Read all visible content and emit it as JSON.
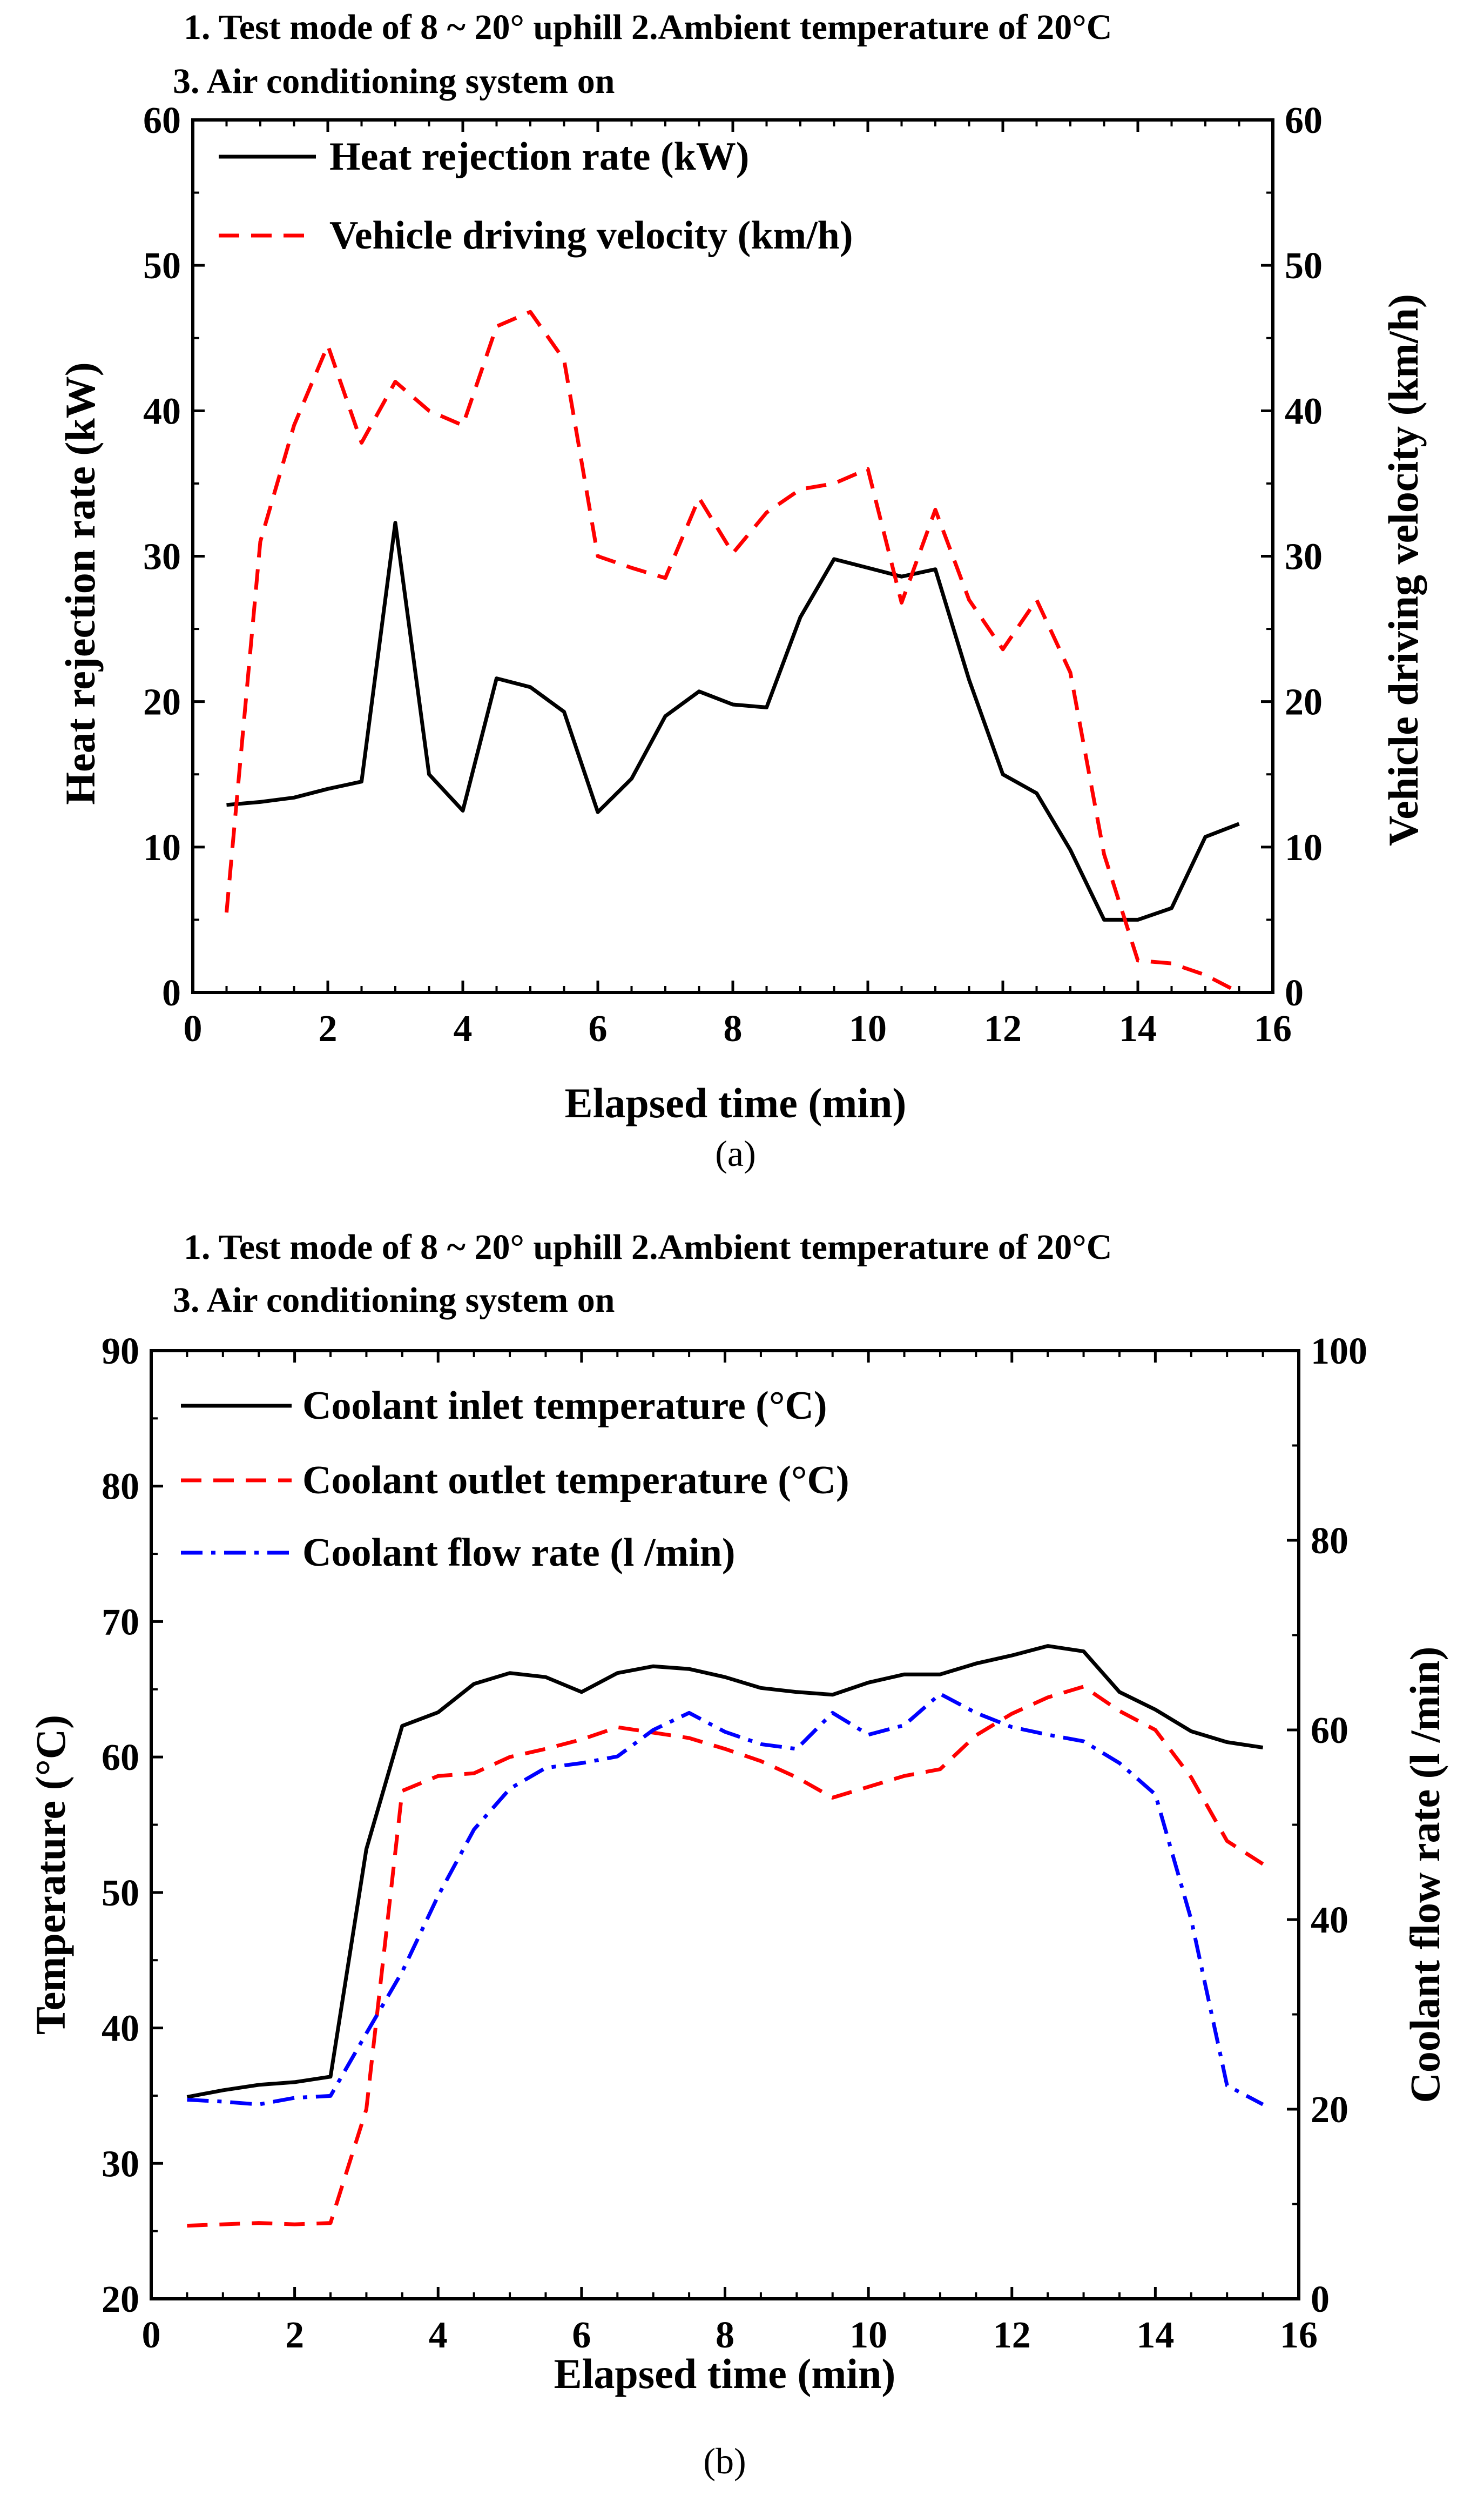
{
  "chart_data": [
    {
      "type": "line",
      "panel": "(a)",
      "title_line1": "1. Test mode of 8 ~ 20° uphill 2.Ambient temperature of 20°C",
      "title_line2": "3. Air conditioning system on",
      "xlabel": "Elapsed time (min)",
      "ylabel": "Heat rejection rate (kW)",
      "y2label": "Vehicle driving velocity (km/h)",
      "xlim": [
        0,
        16
      ],
      "ylim": [
        0,
        60
      ],
      "y2lim": [
        0,
        60
      ],
      "xticks": [
        "0",
        "2",
        "4",
        "6",
        "8",
        "10",
        "12",
        "14",
        "16"
      ],
      "yticks": [
        "0",
        "10",
        "20",
        "30",
        "40",
        "50",
        "60"
      ],
      "y2ticks": [
        "0",
        "10",
        "20",
        "30",
        "40",
        "50",
        "60"
      ],
      "series": [
        {
          "name": "Heat rejection rate (kW)",
          "axis": "left",
          "color": "#000000",
          "dash": "solid",
          "x": [
            0.5,
            1.0,
            1.5,
            2.0,
            2.5,
            3.0,
            3.5,
            4.0,
            4.5,
            5.0,
            5.5,
            6.0,
            6.5,
            7.0,
            7.5,
            8.0,
            8.5,
            9.0,
            9.5,
            10.0,
            10.5,
            11.0,
            11.5,
            12.0,
            12.5,
            13.0,
            13.5,
            14.0,
            14.5,
            15.0,
            15.5
          ],
          "values": [
            12.9,
            13.1,
            13.4,
            14.0,
            14.5,
            32.3,
            15.0,
            12.5,
            21.6,
            21.0,
            19.3,
            12.4,
            14.7,
            19.0,
            20.7,
            19.8,
            19.6,
            25.8,
            29.8,
            29.2,
            28.6,
            29.1,
            21.5,
            15.0,
            13.7,
            9.8,
            5.0,
            5.0,
            5.8,
            10.7,
            11.6
          ]
        },
        {
          "name": "Vehicle driving velocity (km/h)",
          "axis": "right",
          "color": "#ff0000",
          "dash": "dashed",
          "x": [
            0.5,
            1.0,
            1.5,
            2.0,
            2.5,
            3.0,
            3.5,
            4.0,
            4.5,
            5.0,
            5.5,
            6.0,
            6.5,
            7.0,
            7.5,
            8.0,
            8.5,
            9.0,
            9.5,
            10.0,
            10.5,
            11.0,
            11.5,
            12.0,
            12.5,
            13.0,
            13.5,
            14.0,
            14.5,
            15.0,
            15.5
          ],
          "values": [
            5.5,
            31.0,
            39.0,
            44.5,
            37.8,
            42.0,
            40.0,
            39.0,
            45.8,
            46.8,
            43.5,
            30.0,
            29.2,
            28.5,
            34.0,
            30.2,
            33.0,
            34.6,
            35.0,
            36.0,
            26.8,
            33.2,
            27.0,
            23.6,
            27.0,
            22.0,
            9.5,
            2.2,
            2.0,
            1.2,
            0.0
          ]
        }
      ]
    },
    {
      "type": "line",
      "panel": "(b)",
      "title_line1": "1. Test mode of 8 ~ 20° uphill 2.Ambient temperature of 20°C",
      "title_line2": "3. Air conditioning system on",
      "xlabel": "Elapsed time (min)",
      "ylabel": "Temperature (°C)",
      "y2label": "Coolant flow rate (l /min)",
      "xlim": [
        0,
        16
      ],
      "ylim": [
        20,
        90
      ],
      "y2lim": [
        0,
        100
      ],
      "xticks": [
        "0",
        "2",
        "4",
        "6",
        "8",
        "10",
        "12",
        "14",
        "16"
      ],
      "yticks": [
        "20",
        "30",
        "40",
        "50",
        "60",
        "70",
        "80",
        "90"
      ],
      "y2ticks": [
        "0",
        "20",
        "40",
        "60",
        "80",
        "100"
      ],
      "series": [
        {
          "name": "Coolant inlet temperature (°C)",
          "axis": "left",
          "color": "#000000",
          "dash": "solid",
          "x": [
            0.5,
            1.0,
            1.5,
            2.0,
            2.5,
            3.0,
            3.5,
            4.0,
            4.5,
            5.0,
            5.5,
            6.0,
            6.5,
            7.0,
            7.5,
            8.0,
            8.5,
            9.0,
            9.5,
            10.0,
            10.5,
            11.0,
            11.5,
            12.0,
            12.5,
            13.0,
            13.5,
            14.0,
            14.5,
            15.0,
            15.5
          ],
          "values": [
            34.9,
            35.4,
            35.8,
            36.0,
            36.4,
            53.2,
            62.3,
            63.3,
            65.4,
            66.2,
            65.9,
            64.8,
            66.2,
            66.7,
            66.5,
            65.9,
            65.1,
            64.8,
            64.6,
            65.5,
            66.1,
            66.1,
            66.9,
            67.5,
            68.2,
            67.8,
            64.8,
            63.5,
            61.9,
            61.1,
            60.7
          ]
        },
        {
          "name": "Coolant outlet temperature (°C)",
          "axis": "left",
          "color": "#ff0000",
          "dash": "dashed",
          "x": [
            0.5,
            1.0,
            1.5,
            2.0,
            2.5,
            3.0,
            3.5,
            4.0,
            4.5,
            5.0,
            5.5,
            6.0,
            6.5,
            7.0,
            7.5,
            8.0,
            8.5,
            9.0,
            9.5,
            10.0,
            10.5,
            11.0,
            11.5,
            12.0,
            12.5,
            13.0,
            13.5,
            14.0,
            14.5,
            15.0,
            15.5
          ],
          "values": [
            25.4,
            25.5,
            25.6,
            25.5,
            25.6,
            34.0,
            57.5,
            58.6,
            58.8,
            60.0,
            60.6,
            61.3,
            62.2,
            61.8,
            61.4,
            60.6,
            59.7,
            58.5,
            57.0,
            57.8,
            58.6,
            59.1,
            61.6,
            63.2,
            64.4,
            65.2,
            63.4,
            62.0,
            58.5,
            53.8,
            52.1
          ]
        },
        {
          "name": "Coolant flow rate (l /min)",
          "axis": "right",
          "color": "#0000ff",
          "dash": "dashdot",
          "x": [
            0.5,
            1.0,
            1.5,
            2.0,
            2.5,
            3.0,
            3.5,
            4.0,
            4.5,
            5.0,
            5.5,
            6.0,
            6.5,
            7.0,
            7.5,
            8.0,
            8.5,
            9.0,
            9.5,
            10.0,
            10.5,
            11.0,
            11.5,
            12.0,
            12.5,
            13.0,
            13.5,
            14.0,
            14.5,
            15.0,
            15.5
          ],
          "values": [
            21.0,
            20.8,
            20.5,
            21.2,
            21.4,
            28.0,
            34.5,
            42.5,
            49.5,
            53.8,
            56.0,
            56.5,
            57.2,
            60.0,
            61.8,
            59.8,
            58.5,
            58.0,
            61.8,
            59.5,
            60.5,
            63.8,
            61.8,
            60.3,
            59.5,
            58.8,
            56.5,
            53.2,
            40.0,
            22.5,
            20.5
          ]
        }
      ]
    }
  ],
  "panel_a": {
    "title_line1": "1. Test mode of 8 ~ 20° uphill 2.Ambient temperature of 20°C",
    "title_line2": "3. Air conditioning system on",
    "xlabel": "Elapsed time (min)",
    "ylabel": "Heat rejection rate (kW)",
    "y2label": "Vehicle driving velocity (km/h)",
    "legend": [
      "Heat rejection rate (kW)",
      "Vehicle driving velocity (km/h)"
    ],
    "caption": "(a)"
  },
  "panel_b": {
    "title_line1": "1. Test mode of 8 ~ 20° uphill 2.Ambient temperature of 20°C",
    "title_line2": "3. Air conditioning system on",
    "xlabel": "Elapsed time (min)",
    "ylabel": "Temperature (°C)",
    "y2label": "Coolant flow rate (l /min)",
    "legend": [
      "Coolant inlet temperature (°C)",
      "Coolant outlet temperature (°C)",
      "Coolant flow rate (l /min)"
    ],
    "caption": "(b)"
  },
  "colors": {
    "black": "#000000",
    "red": "#ff0000",
    "blue": "#0000ff"
  }
}
